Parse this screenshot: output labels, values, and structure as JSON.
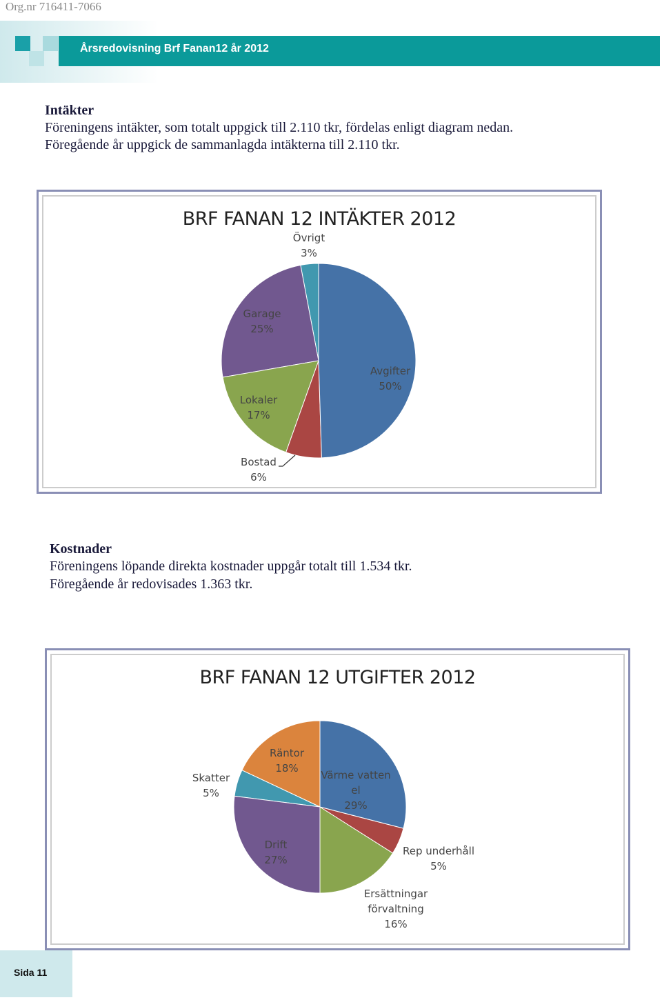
{
  "header": {
    "org": "Org.nr 716411-7066",
    "title": "Årsredovisning Brf Fanan12 år 2012"
  },
  "sections": [
    {
      "heading": "Intäkter",
      "lines": [
        "Föreningens intäkter, som totalt uppgick till 2.110 tkr, fördelas enligt diagram nedan.",
        "Föregående år uppgick de sammanlagda intäkterna till 2.110 tkr."
      ]
    },
    {
      "heading": "Kostnader",
      "lines": [
        "Föreningens löpande direkta kostnader uppgår totalt till 1.534 tkr.",
        "Föregående år redovisades 1.363 tkr."
      ]
    }
  ],
  "chart_data": [
    {
      "type": "pie",
      "title": "BRF FANAN 12 INTÄKTER 2012",
      "categories": [
        "Avgifter",
        "Bostad",
        "Lokaler",
        "Garage",
        "Övrigt"
      ],
      "values": [
        50,
        6,
        17,
        25,
        3
      ],
      "value_labels": [
        "50%",
        "6%",
        "17%",
        "25%",
        "3%"
      ],
      "colors": [
        "#4572a7",
        "#aa4643",
        "#89a54e",
        "#71588f",
        "#4198af"
      ]
    },
    {
      "type": "pie",
      "title": "BRF FANAN 12 UTGIFTER 2012",
      "categories": [
        "Värme vatten el",
        "Rep underhåll",
        "Ersättningar förvaltning",
        "Drift",
        "Skatter",
        "Räntor"
      ],
      "values": [
        29,
        5,
        16,
        27,
        5,
        18
      ],
      "value_labels": [
        "29%",
        "5%",
        "16%",
        "27%",
        "5%",
        "18%"
      ],
      "colors": [
        "#4572a7",
        "#aa4643",
        "#89a54e",
        "#71588f",
        "#4198af",
        "#db843d"
      ]
    }
  ],
  "footer": {
    "page": "Sida 11"
  }
}
